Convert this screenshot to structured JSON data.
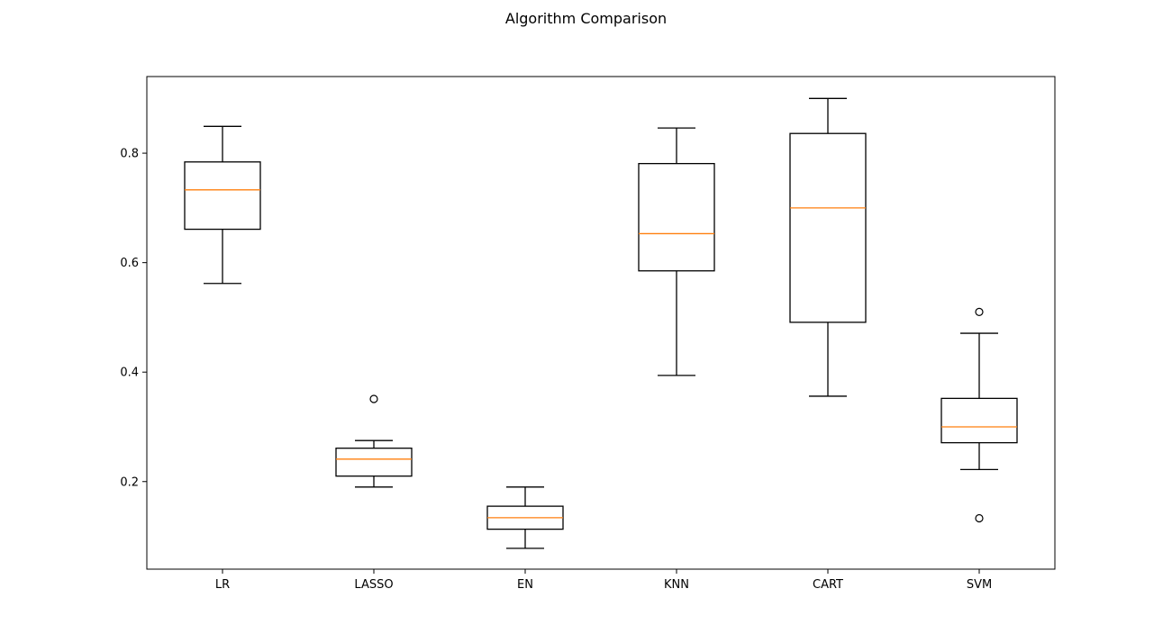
{
  "chart_data": {
    "type": "boxplot",
    "title": "Algorithm Comparison",
    "xlabel": "",
    "ylabel": "",
    "ylim": [
      0.04,
      0.94
    ],
    "yticks": [
      0.2,
      0.4,
      0.6,
      0.8
    ],
    "grid": false,
    "legend": "none",
    "colors": {
      "box": "#000000",
      "median": "#ff7f0e",
      "outlier": "#000000"
    },
    "categories": [
      "LR",
      "LASSO",
      "EN",
      "KNN",
      "CART",
      "SVM"
    ],
    "boxes": [
      {
        "label": "LR",
        "whisker_low": 0.562,
        "q1": 0.661,
        "median": 0.733,
        "q3": 0.784,
        "whisker_high": 0.849,
        "outliers": []
      },
      {
        "label": "LASSO",
        "whisker_low": 0.19,
        "q1": 0.21,
        "median": 0.241,
        "q3": 0.261,
        "whisker_high": 0.275,
        "outliers": [
          0.351
        ]
      },
      {
        "label": "EN",
        "whisker_low": 0.078,
        "q1": 0.113,
        "median": 0.134,
        "q3": 0.155,
        "whisker_high": 0.19,
        "outliers": []
      },
      {
        "label": "KNN",
        "whisker_low": 0.394,
        "q1": 0.585,
        "median": 0.653,
        "q3": 0.781,
        "whisker_high": 0.846,
        "outliers": []
      },
      {
        "label": "CART",
        "whisker_low": 0.356,
        "q1": 0.491,
        "median": 0.7,
        "q3": 0.836,
        "whisker_high": 0.9,
        "outliers": []
      },
      {
        "label": "SVM",
        "whisker_low": 0.222,
        "q1": 0.271,
        "median": 0.3,
        "q3": 0.352,
        "whisker_high": 0.471,
        "outliers": [
          0.51,
          0.133
        ]
      }
    ]
  }
}
